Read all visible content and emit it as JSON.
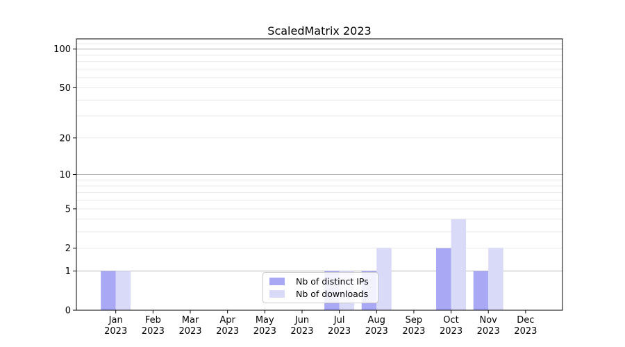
{
  "figure": {
    "background": "#ffffff",
    "axis_color": "#000000",
    "text_color": "#000000"
  },
  "chart_data": {
    "type": "bar",
    "title": "ScaledMatrix 2023",
    "xlabel": "",
    "ylabel": "",
    "categories": [
      "Jan 2023",
      "Feb 2023",
      "Mar 2023",
      "Apr 2023",
      "May 2023",
      "Jun 2023",
      "Jul 2023",
      "Aug 2023",
      "Sep 2023",
      "Oct 2023",
      "Nov 2023",
      "Dec 2023"
    ],
    "series": [
      {
        "name": "Nb of distinct IPs",
        "color": "#a8a8f5",
        "values": [
          1,
          0,
          0,
          0,
          0,
          0,
          1,
          1,
          0,
          2,
          1,
          0
        ]
      },
      {
        "name": "Nb of downloads",
        "color": "#d9d9f8",
        "values": [
          1,
          0,
          0,
          0,
          0,
          0,
          1,
          2,
          0,
          4,
          2,
          0
        ]
      }
    ],
    "yscale": "log1p",
    "ylim": [
      0,
      120
    ],
    "yticks": [
      0,
      1,
      2,
      5,
      10,
      20,
      50,
      100
    ],
    "grid": {
      "major_values": [
        1,
        10,
        100
      ],
      "minor_values": [
        2,
        3,
        4,
        5,
        6,
        7,
        8,
        9,
        20,
        30,
        40,
        50,
        60,
        70,
        80,
        90,
        110
      ],
      "major_color": "#b3b3b3",
      "minor_color": "#e9e9e9"
    },
    "legend": {
      "position": "lower center",
      "items": [
        "Nb of distinct IPs",
        "Nb of downloads"
      ]
    }
  }
}
